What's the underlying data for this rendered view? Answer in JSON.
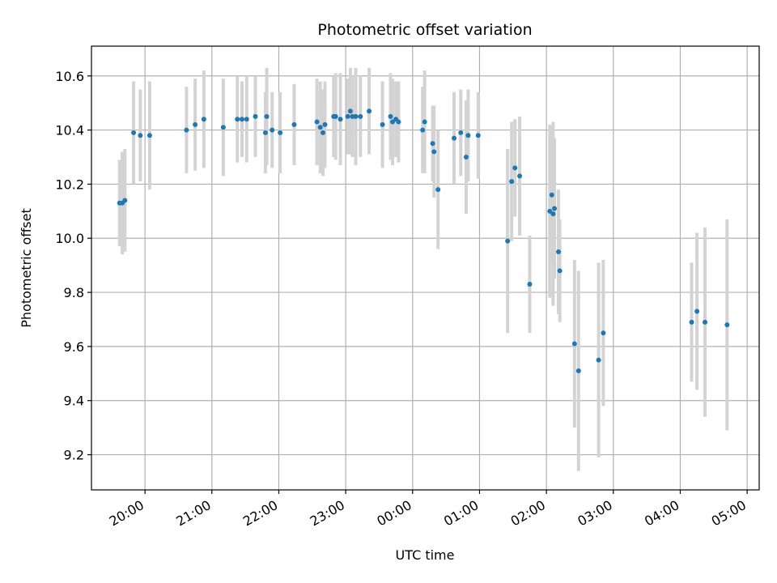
{
  "chart_data": {
    "type": "scatter",
    "title": "Photometric offset variation",
    "xlabel": "UTC time",
    "ylabel": "Photometric offset",
    "x_unit": "hours",
    "x_tick_labels": [
      "20:00",
      "21:00",
      "22:00",
      "23:00",
      "00:00",
      "01:00",
      "02:00",
      "03:00",
      "04:00",
      "05:00"
    ],
    "x_ticks": [
      20,
      21,
      22,
      23,
      24,
      25,
      26,
      27,
      28,
      29
    ],
    "xlim": [
      19.2,
      29.18
    ],
    "ylim": [
      9.07,
      10.71
    ],
    "y_ticks": [
      9.2,
      9.4,
      9.6,
      9.8,
      10.0,
      10.2,
      10.4,
      10.6
    ],
    "y_tick_labels": [
      "9.2",
      "9.4",
      "9.6",
      "9.8",
      "10.0",
      "10.2",
      "10.4",
      "10.6"
    ],
    "grid": true,
    "colors": {
      "point": "#1f77b4",
      "errorbar": "#d3d3d3",
      "grid": "#b0b0b0",
      "axis": "#000000"
    },
    "series": [
      {
        "x": [
          19.62,
          19.66,
          19.7,
          19.83,
          19.93,
          20.07,
          20.62,
          20.75,
          20.88,
          21.17,
          21.38,
          21.45,
          21.52,
          21.65,
          21.8,
          21.82,
          21.9,
          22.02,
          22.23,
          22.57,
          22.62,
          22.66,
          22.69,
          22.82,
          22.85,
          22.92,
          23.03,
          23.07,
          23.1,
          23.15,
          23.22,
          23.35,
          23.55,
          23.67,
          23.7,
          23.75,
          23.79,
          24.15,
          24.18,
          24.3,
          24.32,
          24.38,
          24.62,
          24.72,
          24.8,
          24.83,
          24.98,
          25.42,
          25.48,
          25.53,
          25.6,
          25.75,
          26.05,
          26.08,
          26.1,
          26.12,
          26.18,
          26.2,
          26.42,
          26.48,
          26.78,
          26.85,
          28.17,
          28.25,
          28.37,
          28.7
        ],
        "y": [
          10.13,
          10.13,
          10.14,
          10.39,
          10.38,
          10.38,
          10.4,
          10.42,
          10.44,
          10.41,
          10.44,
          10.44,
          10.44,
          10.45,
          10.39,
          10.45,
          10.4,
          10.39,
          10.42,
          10.43,
          10.41,
          10.39,
          10.42,
          10.45,
          10.45,
          10.44,
          10.45,
          10.47,
          10.45,
          10.45,
          10.45,
          10.47,
          10.42,
          10.45,
          10.43,
          10.44,
          10.43,
          10.4,
          10.43,
          10.35,
          10.32,
          10.18,
          10.37,
          10.39,
          10.3,
          10.38,
          10.38,
          9.99,
          10.21,
          10.26,
          10.23,
          9.83,
          10.1,
          10.16,
          10.09,
          10.11,
          9.95,
          9.88,
          9.61,
          9.51,
          9.55,
          9.65,
          9.69,
          9.73,
          9.69,
          9.68
        ],
        "yerr": [
          0.16,
          0.19,
          0.19,
          0.19,
          0.17,
          0.2,
          0.16,
          0.17,
          0.18,
          0.18,
          0.16,
          0.14,
          0.16,
          0.15,
          0.15,
          0.18,
          0.14,
          0.15,
          0.15,
          0.16,
          0.17,
          0.16,
          0.16,
          0.15,
          0.16,
          0.17,
          0.14,
          0.16,
          0.15,
          0.18,
          0.15,
          0.16,
          0.16,
          0.16,
          0.16,
          0.14,
          0.15,
          0.16,
          0.19,
          0.14,
          0.17,
          0.22,
          0.17,
          0.16,
          0.21,
          0.17,
          0.16,
          0.34,
          0.22,
          0.18,
          0.22,
          0.18,
          0.32,
          0.25,
          0.34,
          0.26,
          0.23,
          0.19,
          0.31,
          0.37,
          0.36,
          0.27,
          0.22,
          0.29,
          0.35,
          0.39
        ]
      }
    ]
  }
}
